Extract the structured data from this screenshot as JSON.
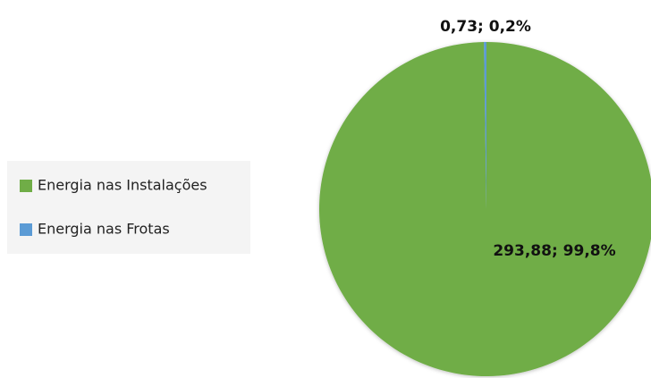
{
  "chart_data": {
    "type": "pie",
    "categories": [
      "Energia nas Instalações",
      "Energia nas Frotas"
    ],
    "values": [
      293.88,
      0.73
    ],
    "value_labels": [
      "293,88; 99,8%",
      "0,73; 0,2%"
    ],
    "colors": [
      "#70ad47",
      "#5b9bd5"
    ],
    "legend": "left"
  }
}
